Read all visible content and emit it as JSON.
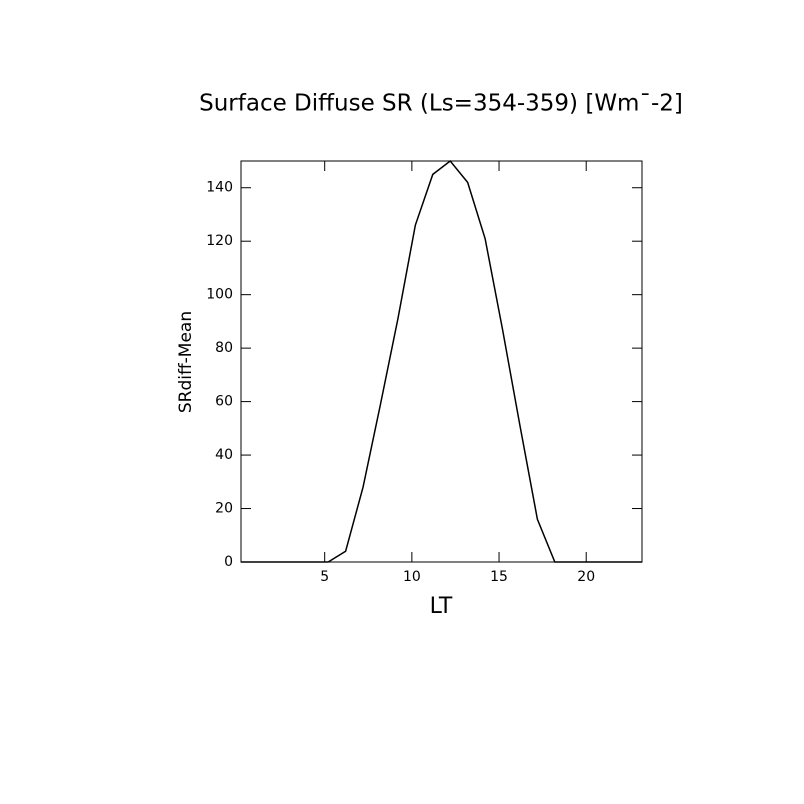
{
  "chart_data": {
    "type": "line",
    "title": "Surface Diffuse SR (Ls=354-359) [Wm¯-2]",
    "x_label": "LT",
    "y_label": "SRdiff-Mean",
    "x": [
      0.2,
      1.2,
      2.2,
      3.2,
      4.2,
      5.2,
      6.2,
      7.2,
      8.2,
      9.2,
      10.2,
      11.2,
      12.2,
      13.2,
      14.2,
      15.2,
      16.2,
      17.2,
      18.2,
      19.2,
      20.2,
      21.2,
      22.2,
      23.2
    ],
    "values": [
      0,
      0,
      0,
      0,
      0,
      0,
      4,
      28,
      59,
      91,
      126,
      145,
      150,
      142,
      121,
      87,
      51,
      16,
      0,
      0,
      0,
      0,
      0,
      0
    ],
    "color": "#000000",
    "xlim": [
      0.2,
      23.2
    ],
    "xticks": [
      5,
      10,
      15,
      20
    ],
    "ylim": [
      0,
      150
    ],
    "yticks": [
      0,
      20,
      40,
      60,
      80,
      100,
      120,
      140
    ]
  }
}
